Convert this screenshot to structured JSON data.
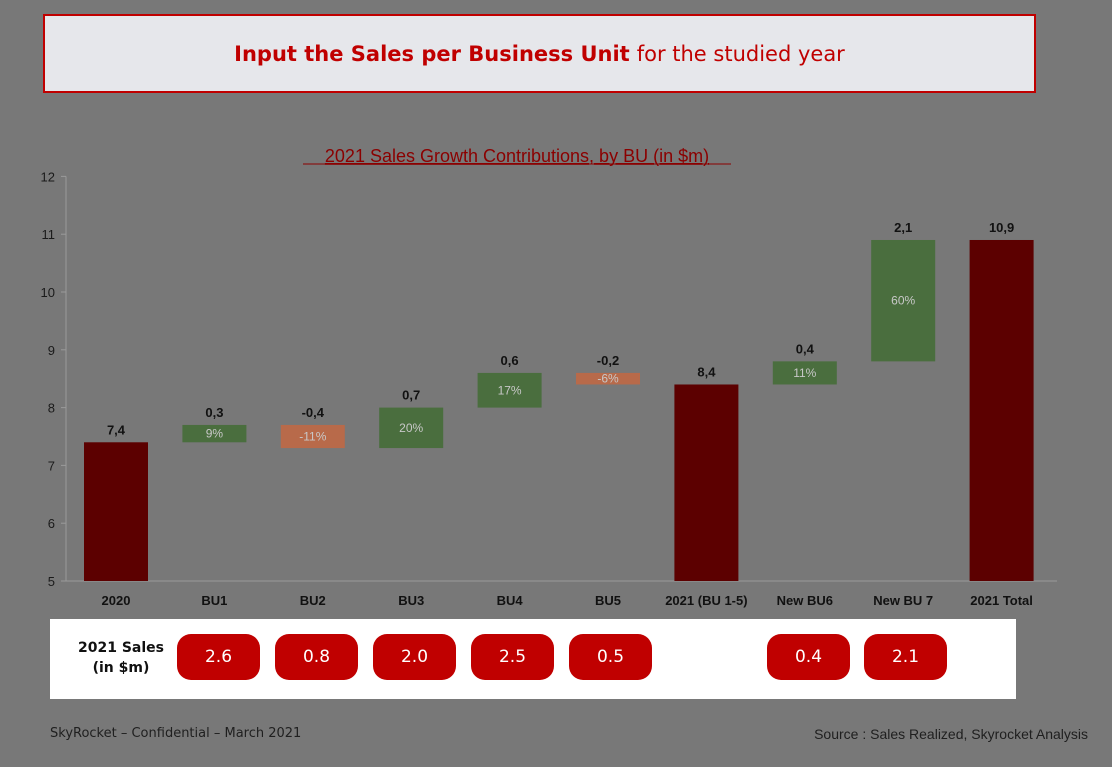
{
  "banner": {
    "bold": "Input the Sales per Business Unit",
    "rest": "for the studied year"
  },
  "chart_data": {
    "type": "waterfall",
    "title": "2021 Sales Growth Contributions, by BU (in $m)",
    "ylim": [
      5,
      12
    ],
    "yticks": [
      5,
      6,
      7,
      8,
      9,
      10,
      11,
      12
    ],
    "grid": false,
    "colors": {
      "total": "#5c0000",
      "positive": "#4a6e3e",
      "negative": "#b86a4a",
      "delta_label": "#c8c8c8"
    },
    "bars": [
      {
        "category": "2020",
        "kind": "total",
        "start": 5,
        "end": 7.4,
        "value_label": "7,4",
        "pct_label": ""
      },
      {
        "category": "BU1",
        "kind": "delta",
        "start": 7.4,
        "end": 7.7,
        "value_label": "0,3",
        "pct_label": "9%"
      },
      {
        "category": "BU2",
        "kind": "delta",
        "start": 7.7,
        "end": 7.3,
        "value_label": "-0,4",
        "pct_label": "-11%"
      },
      {
        "category": "BU3",
        "kind": "delta",
        "start": 7.3,
        "end": 8.0,
        "value_label": "0,7",
        "pct_label": "20%"
      },
      {
        "category": "BU4",
        "kind": "delta",
        "start": 8.0,
        "end": 8.6,
        "value_label": "0,6",
        "pct_label": "17%"
      },
      {
        "category": "BU5",
        "kind": "delta",
        "start": 8.6,
        "end": 8.4,
        "value_label": "-0,2",
        "pct_label": "-6%"
      },
      {
        "category": "2021 (BU 1-5)",
        "kind": "total",
        "start": 5,
        "end": 8.4,
        "value_label": "8,4",
        "pct_label": ""
      },
      {
        "category": "New BU6",
        "kind": "delta",
        "start": 8.4,
        "end": 8.8,
        "value_label": "0,4",
        "pct_label": "11%"
      },
      {
        "category": "New BU 7",
        "kind": "delta",
        "start": 8.8,
        "end": 10.9,
        "value_label": "2,1",
        "pct_label": "60%"
      },
      {
        "category": "2021 Total",
        "kind": "total",
        "start": 5,
        "end": 10.9,
        "value_label": "10,9",
        "pct_label": ""
      }
    ]
  },
  "sales_row": {
    "label_line1": "2021 Sales",
    "label_line2": "(in $m)",
    "values": [
      "2.6",
      "0.8",
      "2.0",
      "2.5",
      "0.5",
      "",
      "0.4",
      "2.1",
      ""
    ]
  },
  "footer": {
    "left": "SkyRocket – Confidential – March 2021",
    "right": "Source : Sales Realized, Skyrocket Analysis"
  }
}
